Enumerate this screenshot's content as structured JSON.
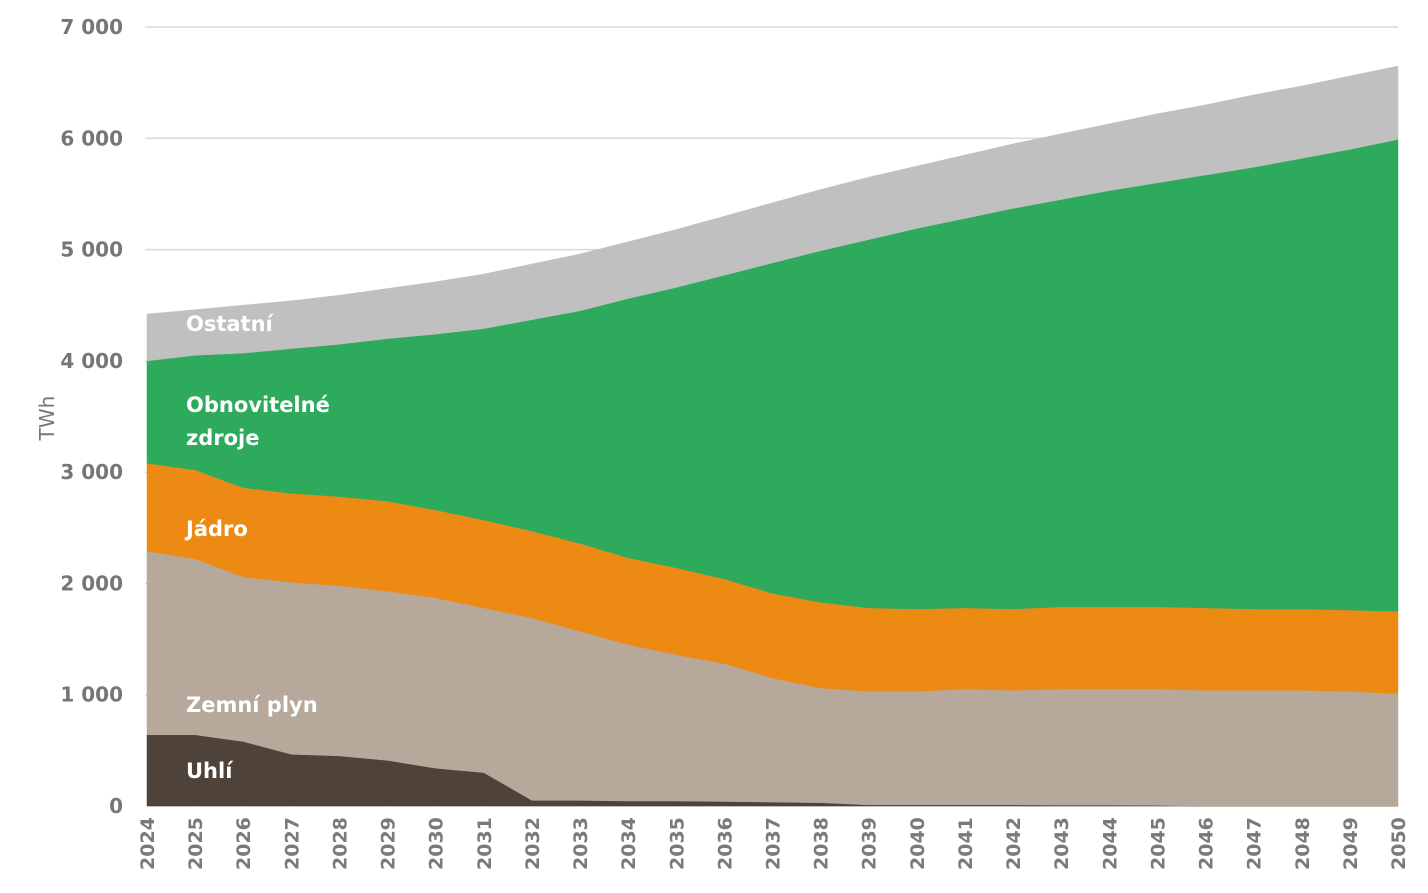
{
  "chart_data": {
    "type": "area",
    "stacked": true,
    "title": "",
    "xlabel": "",
    "ylabel": "TWh",
    "ylim": [
      0,
      7000
    ],
    "yticks": [
      0,
      1000,
      2000,
      3000,
      4000,
      5000,
      6000,
      7000
    ],
    "ytick_labels": [
      "0",
      "1 000",
      "2 000",
      "3 000",
      "4 000",
      "5 000",
      "6 000",
      "7 000"
    ],
    "grid": true,
    "legend": "inline-labels-left",
    "x": [
      "2024",
      "2025",
      "2026",
      "2027",
      "2028",
      "2029",
      "2030",
      "2031",
      "2032",
      "2033",
      "2034",
      "2035",
      "2036",
      "2037",
      "2038",
      "2039",
      "2040",
      "2041",
      "2042",
      "2043",
      "2044",
      "2045",
      "2046",
      "2047",
      "2048",
      "2049",
      "2050"
    ],
    "series": [
      {
        "name": "Uhlí",
        "color": "#4f4238",
        "label_lines": [
          "Uhlí"
        ],
        "values": [
          640,
          640,
          580,
          465,
          450,
          410,
          340,
          300,
          50,
          50,
          45,
          45,
          40,
          35,
          30,
          10,
          10,
          10,
          10,
          8,
          8,
          5,
          0,
          0,
          0,
          0,
          0
        ]
      },
      {
        "name": "Zemní plyn",
        "color": "#b6a89b",
        "label_lines": [
          "Zemní plyn"
        ],
        "values": [
          1650,
          1580,
          1480,
          1545,
          1530,
          1520,
          1530,
          1480,
          1640,
          1520,
          1405,
          1315,
          1240,
          1115,
          1030,
          1020,
          1020,
          1040,
          1030,
          1042,
          1042,
          1045,
          1040,
          1040,
          1040,
          1030,
          1010
        ]
      },
      {
        "name": "Jádro",
        "color": "#ed8a14",
        "label_lines": [
          "Jádro"
        ],
        "values": [
          790,
          800,
          800,
          800,
          800,
          810,
          790,
          790,
          780,
          790,
          780,
          780,
          760,
          760,
          770,
          750,
          740,
          730,
          730,
          740,
          740,
          740,
          740,
          730,
          730,
          730,
          740
        ]
      },
      {
        "name": "Obnovitelné zdroje",
        "color": "#2daa5c",
        "label_lines": [
          "Obnovitelné",
          "zdroje"
        ],
        "values": [
          920,
          1030,
          1210,
          1300,
          1370,
          1460,
          1580,
          1720,
          1900,
          2090,
          2330,
          2520,
          2730,
          2970,
          3160,
          3310,
          3420,
          3500,
          3600,
          3660,
          3740,
          3810,
          3890,
          3970,
          4050,
          4140,
          4240
        ]
      },
      {
        "name": "Ostatní",
        "color": "#c0c0c0",
        "label_lines": [
          "Ostatní"
        ],
        "values": [
          420,
          410,
          430,
          430,
          440,
          450,
          470,
          490,
          500,
          510,
          510,
          520,
          530,
          540,
          550,
          560,
          560,
          570,
          580,
          590,
          600,
          620,
          630,
          650,
          650,
          660,
          660
        ]
      }
    ]
  }
}
